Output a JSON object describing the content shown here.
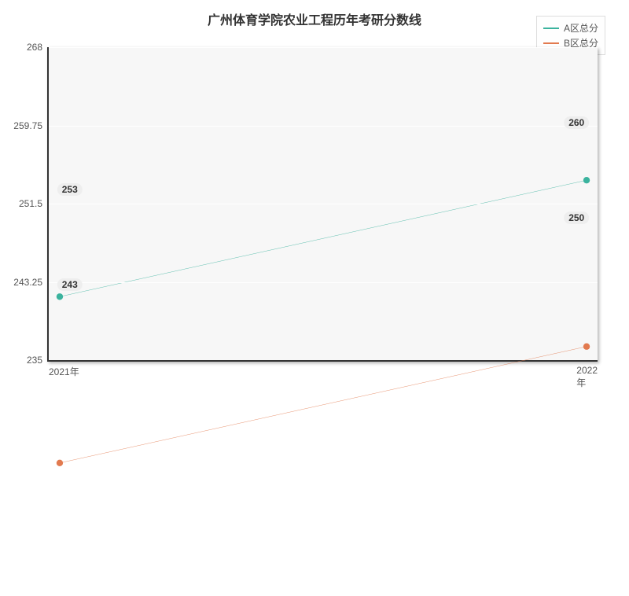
{
  "chart": {
    "type": "line",
    "title": "广州体育学院农业工程历年考研分数线",
    "title_fontsize": 16,
    "background_color": "#ffffff",
    "plot_background": "#f7f7f7",
    "grid_color": "#ffffff",
    "axis_color": "#333333",
    "ylim": [
      235,
      268
    ],
    "yticks": [
      235,
      243.25,
      251.5,
      259.75,
      268
    ],
    "ytick_labels": [
      "235",
      "243.25",
      "251.5",
      "259.75",
      "268"
    ],
    "xticks": [
      "2021年",
      "2022年"
    ],
    "series": [
      {
        "name": "A区总分",
        "color": "#3bb39e",
        "values": [
          253,
          260
        ],
        "labels": [
          "253",
          "260"
        ]
      },
      {
        "name": "B区总分",
        "color": "#e27a4f",
        "values": [
          243,
          250
        ],
        "labels": [
          "243",
          "250"
        ]
      }
    ],
    "label_bg": "#eeeeee",
    "label_fontsize": 12,
    "legend_bg": "#fefefe",
    "legend_border": "#dddddd"
  }
}
